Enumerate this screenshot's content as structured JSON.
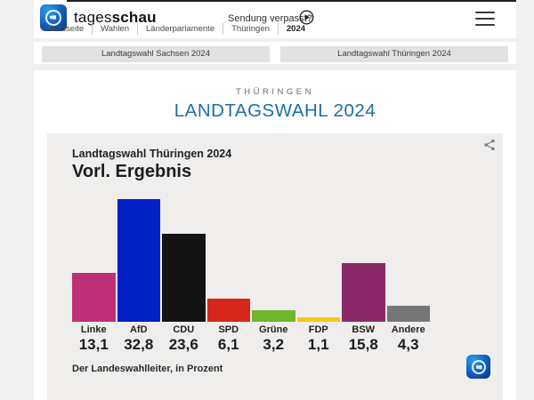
{
  "header": {
    "brand": {
      "light": "tages",
      "bold": "schau"
    },
    "sendung_verpasst": "Sendung verpasst?",
    "breadcrumb": [
      "Startseite",
      "Wahlen",
      "Länderparlamente",
      "Thüringen",
      "2024"
    ]
  },
  "tabs": [
    {
      "label": "Landtagswahl Sachsen 2024"
    },
    {
      "label": "Landtagswahl Thüringen 2024"
    }
  ],
  "main": {
    "kicker": "THÜRINGEN",
    "title": "LANDTAGSWAHL 2024",
    "title_color": "#1d6ea5"
  },
  "chart_data": {
    "type": "bar",
    "title": "Landtagswahl Thüringen 2024",
    "subtitle": "Vorl. Ergebnis",
    "categories": [
      "Linke",
      "AfD",
      "CDU",
      "SPD",
      "Grüne",
      "FDP",
      "BSW",
      "Andere"
    ],
    "values": [
      13.1,
      32.8,
      23.6,
      6.1,
      3.2,
      1.1,
      15.8,
      4.3
    ],
    "display_values": [
      "13,1",
      "32,8",
      "23,6",
      "6,1",
      "3,2",
      "1,1",
      "15,8",
      "4,3"
    ],
    "colors": [
      "#bd3075",
      "#0120c5",
      "#141414",
      "#d7271d",
      "#70b52b",
      "#f7c913",
      "#8b2a68",
      "#767676"
    ],
    "ylabel": "Prozent",
    "ylim": [
      0,
      35
    ],
    "grid": false,
    "legend": false,
    "source": "Der Landeswahlleiter, in Prozent"
  }
}
